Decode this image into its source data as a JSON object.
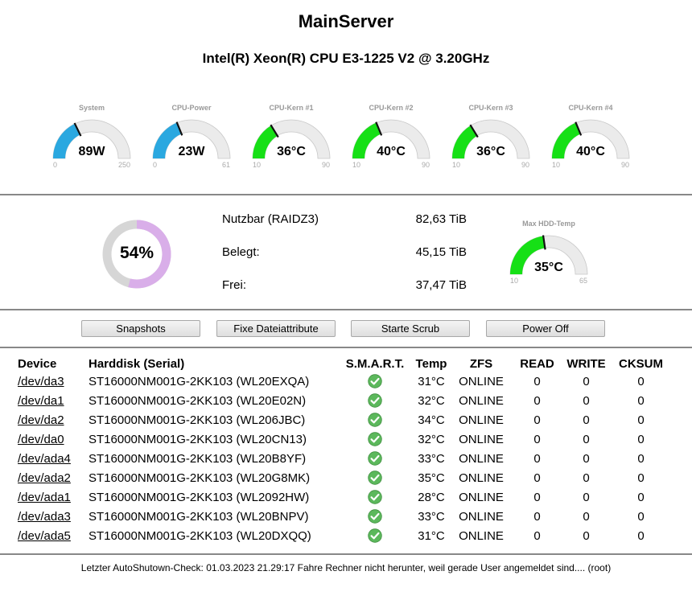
{
  "header": {
    "title": "MainServer",
    "cpu": "Intel(R) Xeon(R) CPU E3-1225 V2 @ 3.20GHz"
  },
  "gauges": [
    {
      "label": "System",
      "value": 89,
      "display": "89W",
      "min": 0,
      "max": 250,
      "color": "#2aa8e0"
    },
    {
      "label": "CPU-Power",
      "value": 23,
      "display": "23W",
      "min": 0,
      "max": 61,
      "color": "#2aa8e0"
    },
    {
      "label": "CPU-Kern #1",
      "value": 36,
      "display": "36°C",
      "min": 10,
      "max": 90,
      "color": "#16e016"
    },
    {
      "label": "CPU-Kern #2",
      "value": 40,
      "display": "40°C",
      "min": 10,
      "max": 90,
      "color": "#16e016"
    },
    {
      "label": "CPU-Kern #3",
      "value": 36,
      "display": "36°C",
      "min": 10,
      "max": 90,
      "color": "#16e016"
    },
    {
      "label": "CPU-Kern #4",
      "value": 40,
      "display": "40°C",
      "min": 10,
      "max": 90,
      "color": "#16e016"
    }
  ],
  "storage": {
    "percent_used": 54,
    "percent_label": "54%",
    "ring_color": "#d9aee9",
    "usable_label": "Nutzbar (RAIDZ3)",
    "usable_value": "82,63 TiB",
    "used_label": "Belegt:",
    "used_value": "45,15 TiB",
    "free_label": "Frei:",
    "free_value": "37,47 TiB"
  },
  "hdd_gauge": {
    "label": "Max HDD-Temp",
    "value": 35,
    "display": "35°C",
    "min": 10,
    "max": 65,
    "color": "#16e016"
  },
  "buttons": {
    "snapshots": "Snapshots",
    "fix_attributes": "Fixe Dateiattribute",
    "scrub": "Starte Scrub",
    "power_off": "Power Off"
  },
  "table": {
    "headers": {
      "device": "Device",
      "harddisk": "Harddisk (Serial)",
      "smart": "S.M.A.R.T.",
      "temp": "Temp",
      "zfs": "ZFS",
      "read": "READ",
      "write": "WRITE",
      "cksum": "CKSUM"
    },
    "rows": [
      {
        "device": "/dev/da3",
        "disk": "ST16000NM001G-2KK103 (WL20EXQA)",
        "temp": "31°C",
        "zfs": "ONLINE",
        "read": "0",
        "write": "0",
        "cksum": "0"
      },
      {
        "device": "/dev/da1",
        "disk": "ST16000NM001G-2KK103 (WL20E02N)",
        "temp": "32°C",
        "zfs": "ONLINE",
        "read": "0",
        "write": "0",
        "cksum": "0"
      },
      {
        "device": "/dev/da2",
        "disk": "ST16000NM001G-2KK103 (WL206JBC)",
        "temp": "34°C",
        "zfs": "ONLINE",
        "read": "0",
        "write": "0",
        "cksum": "0"
      },
      {
        "device": "/dev/da0",
        "disk": "ST16000NM001G-2KK103 (WL20CN13)",
        "temp": "32°C",
        "zfs": "ONLINE",
        "read": "0",
        "write": "0",
        "cksum": "0"
      },
      {
        "device": "/dev/ada4",
        "disk": "ST16000NM001G-2KK103 (WL20B8YF)",
        "temp": "33°C",
        "zfs": "ONLINE",
        "read": "0",
        "write": "0",
        "cksum": "0"
      },
      {
        "device": "/dev/ada2",
        "disk": "ST16000NM001G-2KK103 (WL20G8MK)",
        "temp": "35°C",
        "zfs": "ONLINE",
        "read": "0",
        "write": "0",
        "cksum": "0"
      },
      {
        "device": "/dev/ada1",
        "disk": "ST16000NM001G-2KK103 (WL2092HW)",
        "temp": "28°C",
        "zfs": "ONLINE",
        "read": "0",
        "write": "0",
        "cksum": "0"
      },
      {
        "device": "/dev/ada3",
        "disk": "ST16000NM001G-2KK103 (WL20BNPV)",
        "temp": "33°C",
        "zfs": "ONLINE",
        "read": "0",
        "write": "0",
        "cksum": "0"
      },
      {
        "device": "/dev/ada5",
        "disk": "ST16000NM001G-2KK103 (WL20DXQQ)",
        "temp": "31°C",
        "zfs": "ONLINE",
        "read": "0",
        "write": "0",
        "cksum": "0"
      }
    ]
  },
  "icons": {
    "smart_ok": "check-circle-icon",
    "smart_color": "#5cb85c"
  },
  "footer": "Letzter AutoShutown-Check: 01.03.2023 21.29:17 Fahre Rechner nicht herunter, weil gerade User angemeldet sind.... (root)"
}
